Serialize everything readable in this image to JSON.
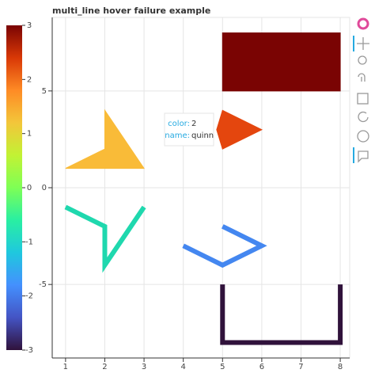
{
  "chart_data": {
    "type": "multi_shape",
    "title": "multi_line hover failure example",
    "xlim": [
      0.66,
      8.24
    ],
    "xticks": [
      1,
      2,
      3,
      4,
      5,
      6,
      7,
      8
    ],
    "ylim": [
      -8.8,
      8.8
    ],
    "yticks": [
      -5,
      0,
      5
    ],
    "grid": true,
    "series": [
      {
        "color": "#f9bb38",
        "fill": true,
        "x": [
          1,
          3,
          2,
          2
        ],
        "y": [
          1,
          1,
          4,
          2
        ]
      },
      {
        "color": "#e4460e",
        "fill": true,
        "x": [
          5,
          6,
          5,
          4.85
        ],
        "y": [
          4,
          3,
          2,
          3
        ]
      },
      {
        "color": "#7a0403",
        "fill": true,
        "x": [
          5,
          8,
          8,
          5
        ],
        "y": [
          5,
          5,
          8,
          8
        ]
      },
      {
        "color": "#1fd8ae",
        "fill": false,
        "x": [
          1,
          2,
          2,
          3
        ],
        "y": [
          -1,
          -2,
          -4,
          -1
        ]
      },
      {
        "color": "#4487f0",
        "fill": false,
        "x": [
          4,
          5,
          6,
          5
        ],
        "y": [
          -3,
          -4,
          -3,
          -2
        ]
      },
      {
        "color": "#30123b",
        "fill": false,
        "x": [
          5,
          5,
          8,
          8
        ],
        "y": [
          -5,
          -8,
          -8,
          -5
        ]
      }
    ],
    "colorbar": {
      "lim": [
        -3,
        3
      ],
      "ticks": [
        -3,
        -2,
        -1,
        0,
        1,
        2,
        3
      ]
    },
    "tooltip": {
      "rows": [
        {
          "key": "color:",
          "value": "2"
        },
        {
          "key": "name:",
          "value": "quinn"
        }
      ]
    }
  }
}
